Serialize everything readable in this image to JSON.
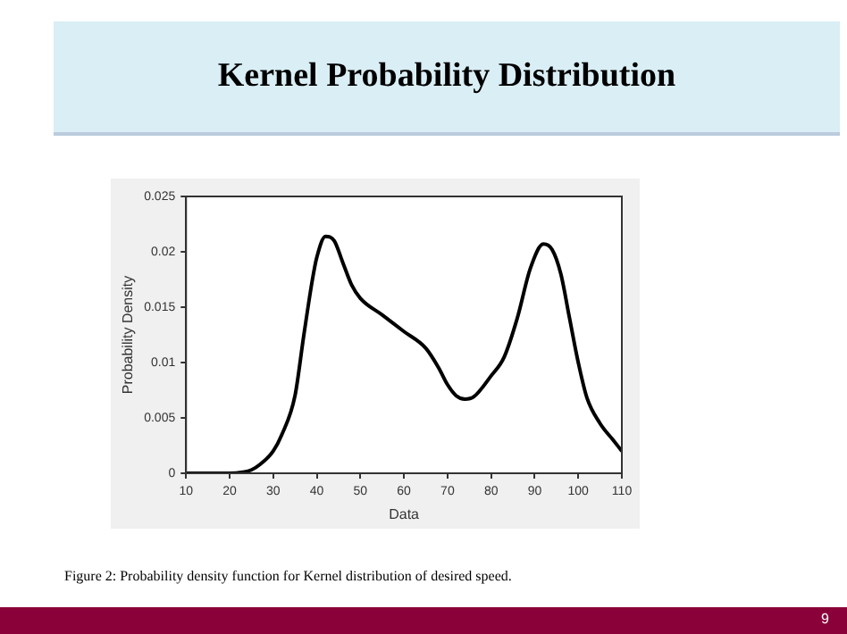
{
  "chart_data": {
    "type": "line",
    "title": "Kernel Probability Distribution",
    "xlabel": "Data",
    "ylabel": "Probability Density",
    "annotations": [
      "Figure 2: Probability density function for Kernel distribution of desired speed.",
      "9"
    ],
    "x": [
      10,
      20,
      23,
      25,
      27,
      30,
      32,
      35,
      37,
      39,
      40,
      42,
      44,
      46,
      48,
      50,
      55,
      60,
      65,
      68,
      70,
      72,
      74,
      76,
      80,
      83,
      86,
      89,
      92,
      94,
      96,
      98,
      100,
      102,
      105,
      108,
      110
    ],
    "series": [
      {
        "color": "#000000",
        "values": [
          0,
          0,
          0.0001,
          0.0003,
          0.0008,
          0.002,
          0.0035,
          0.007,
          0.0124,
          0.0175,
          0.0195,
          0.0214,
          0.021,
          0.019,
          0.017,
          0.0158,
          0.0143,
          0.0128,
          0.0113,
          0.0095,
          0.008,
          0.007,
          0.0067,
          0.0069,
          0.0088,
          0.0105,
          0.014,
          0.0185,
          0.0207,
          0.0202,
          0.018,
          0.014,
          0.01,
          0.0068,
          0.0045,
          0.003,
          0.002
        ]
      }
    ],
    "xlim": [
      10,
      110
    ],
    "xticks": [
      10,
      20,
      30,
      40,
      50,
      60,
      70,
      80,
      90,
      100,
      110
    ],
    "ylim": [
      0,
      0.025
    ],
    "yticks": [
      0,
      0.005,
      0.01,
      0.015,
      0.02,
      0.025
    ],
    "grid": false,
    "legend": false,
    "marker": "none",
    "line_style": "solid"
  }
}
